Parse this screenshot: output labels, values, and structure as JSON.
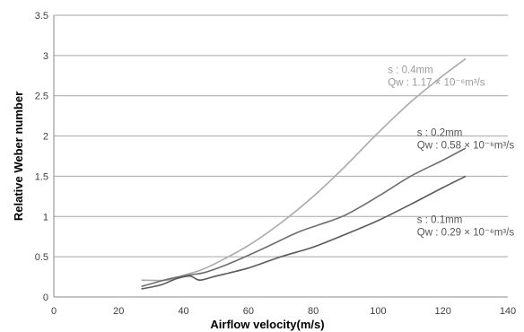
{
  "chart_data": {
    "type": "line",
    "title": "",
    "xlabel": "Airflow velocity(m/s)",
    "ylabel": "Relative Weber number",
    "xlim": [
      0,
      140
    ],
    "ylim": [
      0,
      3.5
    ],
    "x_ticks": [
      "0",
      "20",
      "40",
      "60",
      "80",
      "100",
      "120",
      "140"
    ],
    "y_ticks": [
      "0",
      "0.5",
      "1",
      "1.5",
      "2",
      "2.5",
      "3",
      "3.5"
    ],
    "grid": "horizontal",
    "series": [
      {
        "color": "#aaaaaa",
        "x": [
          27,
          35,
          40,
          45,
          50,
          60,
          70,
          80,
          90,
          100,
          110,
          120,
          127
        ],
        "y": [
          0.21,
          0.21,
          0.27,
          0.33,
          0.42,
          0.64,
          0.92,
          1.25,
          1.63,
          2.04,
          2.42,
          2.75,
          2.96
        ]
      },
      {
        "color": "#6e6e6e",
        "x": [
          27,
          35,
          40,
          43,
          47,
          55,
          65,
          75,
          82,
          90,
          100,
          110,
          120,
          127
        ],
        "y": [
          0.13,
          0.22,
          0.26,
          0.28,
          0.31,
          0.43,
          0.61,
          0.8,
          0.9,
          1.02,
          1.25,
          1.5,
          1.7,
          1.85
        ]
      },
      {
        "color": "#5a5a5a",
        "x": [
          27,
          33,
          38,
          42,
          45,
          50,
          60,
          70,
          80,
          90,
          100,
          110,
          120,
          127
        ],
        "y": [
          0.1,
          0.15,
          0.23,
          0.26,
          0.21,
          0.26,
          0.36,
          0.5,
          0.62,
          0.78,
          0.95,
          1.15,
          1.36,
          1.5
        ]
      }
    ],
    "annotations": [
      {
        "lines": [
          "s : 0.4mm",
          "Qw : 1.17 × 10⁻⁶m³/s"
        ],
        "x": 103,
        "y": 2.78,
        "color": "#9a9a9a"
      },
      {
        "lines": [
          "s : 0.2mm",
          "Qw : 0.58 × 10⁻⁶m³/s"
        ],
        "x": 112,
        "y": 2.0,
        "color": "#555555"
      },
      {
        "lines": [
          "s : 0.1mm",
          "Qw : 0.29 × 10⁻⁶m³/s"
        ],
        "x": 112,
        "y": 0.92,
        "color": "#555555"
      }
    ]
  }
}
